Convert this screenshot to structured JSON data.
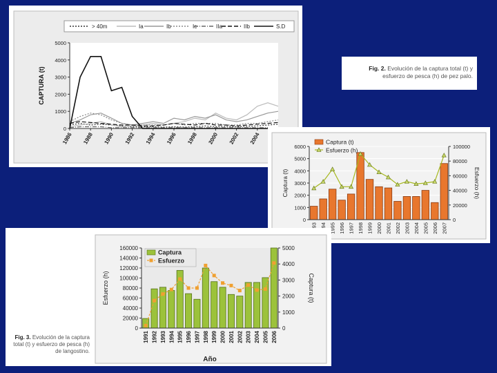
{
  "chart_data": [
    {
      "type": "line",
      "xlabel": "",
      "ylabel": "CAPTURA (t)",
      "ylim": [
        0,
        5000
      ],
      "yticks": [
        0,
        1000,
        2000,
        3000,
        4000,
        5000
      ],
      "xticks": [
        "1986",
        "1988",
        "1990",
        "1992",
        "1994",
        "1996",
        "1998",
        "2000",
        "2002",
        "2004",
        "2006"
      ],
      "x": [
        1986,
        1987,
        1988,
        1989,
        1990,
        1991,
        1992,
        1993,
        1994,
        1995,
        1996,
        1997,
        1998,
        1999,
        2000,
        2001,
        2002,
        2003,
        2004,
        2005,
        2006
      ],
      "legend_position": "top",
      "series": [
        {
          "name": "> 40m",
          "color": "#333333",
          "dash": "2,2",
          "values": [
            200,
            300,
            200,
            250,
            200,
            150,
            100,
            100,
            100,
            80,
            100,
            80,
            100,
            150,
            100,
            120,
            100,
            120,
            150,
            200,
            250
          ]
        },
        {
          "name": "Ia",
          "color": "#bbbbbb",
          "dash": "",
          "values": [
            100,
            200,
            300,
            400,
            200,
            100,
            150,
            200,
            300,
            200,
            300,
            400,
            600,
            500,
            900,
            600,
            500,
            800,
            1300,
            1500,
            1300
          ]
        },
        {
          "name": "Ib",
          "color": "#999999",
          "dash": "",
          "values": [
            300,
            500,
            800,
            900,
            600,
            300,
            200,
            300,
            400,
            300,
            600,
            500,
            700,
            600,
            800,
            500,
            400,
            500,
            700,
            900,
            1000
          ]
        },
        {
          "name": "Ic",
          "color": "#888888",
          "dash": "2,2",
          "values": [
            400,
            700,
            900,
            800,
            500,
            300,
            200,
            200,
            200,
            200,
            300,
            200,
            300,
            300,
            300,
            200,
            200,
            300,
            300,
            400,
            500
          ]
        },
        {
          "name": "IIa",
          "color": "#666666",
          "dash": "6,2,1,2",
          "values": [
            50,
            100,
            100,
            100,
            50,
            50,
            50,
            50,
            50,
            50,
            50,
            50,
            50,
            50,
            50,
            50,
            50,
            50,
            50,
            50,
            50
          ]
        },
        {
          "name": "IIb",
          "color": "#111111",
          "dash": "6,3",
          "values": [
            300,
            400,
            350,
            300,
            250,
            200,
            200,
            150,
            150,
            200,
            300,
            250,
            200,
            300,
            200,
            200,
            150,
            200,
            250,
            300,
            350
          ]
        },
        {
          "name": "S.D",
          "color": "#111111",
          "dash": "",
          "values": [
            0,
            3000,
            4200,
            4200,
            2200,
            2400,
            700,
            0,
            0,
            0,
            0,
            0,
            0,
            0,
            0,
            0,
            0,
            0,
            0,
            0,
            0
          ]
        }
      ]
    },
    {
      "type": "bar",
      "categories": [
        "1993",
        "1994",
        "1995",
        "1996",
        "1997",
        "1998",
        "1999",
        "2000",
        "2001",
        "2002",
        "2003",
        "2004",
        "2005",
        "2006",
        "2007"
      ],
      "series": [
        {
          "name": "Captura (t)",
          "kind": "bar",
          "axis": "left",
          "color": "#e8772e",
          "values": [
            1100,
            1700,
            2500,
            1600,
            2100,
            5500,
            3300,
            2700,
            2600,
            1500,
            1900,
            1900,
            2400,
            1400,
            4600
          ]
        },
        {
          "name": "Esfuerzo (h)",
          "kind": "line",
          "axis": "right",
          "color": "#a6b81e",
          "values": [
            43000,
            52000,
            69000,
            45000,
            45000,
            90000,
            75000,
            65000,
            58000,
            48000,
            52000,
            49000,
            50000,
            52000,
            88000
          ]
        }
      ],
      "ylabel": "Captura (t)",
      "ylabel_right": "Esfuerzo (h)",
      "ylim": [
        0,
        6000
      ],
      "yticks": [
        0,
        1000,
        2000,
        3000,
        4000,
        5000,
        6000
      ],
      "ylim_right": [
        0,
        100000
      ],
      "yticks_right": [
        0,
        20000,
        40000,
        60000,
        80000,
        100000
      ],
      "legend_position": "top-left"
    },
    {
      "type": "bar",
      "categories": [
        "1991",
        "1992",
        "1993",
        "1994",
        "1995",
        "1996",
        "1997",
        "1998",
        "1999",
        "2000",
        "2001",
        "2002",
        "2003",
        "2004",
        "2005",
        "2006"
      ],
      "series": [
        {
          "name": "Captura",
          "kind": "bar",
          "axis": "right",
          "color": "#9cc23b",
          "values": [
            600,
            2450,
            2550,
            2350,
            3600,
            2150,
            1800,
            3750,
            2900,
            2550,
            2100,
            2000,
            2850,
            2850,
            3150,
            5000
          ]
        },
        {
          "name": "Esfuerzo",
          "kind": "line",
          "axis": "left",
          "color": "#f0a030",
          "values": [
            5000,
            55000,
            68000,
            77000,
            98000,
            80000,
            80000,
            125000,
            105000,
            90000,
            85000,
            75000,
            86000,
            76000,
            78000,
            130000
          ]
        }
      ],
      "xlabel": "Año",
      "ylabel": "Esfuerzo (h)",
      "ylabel_right": "Captura (t)",
      "ylim": [
        0,
        160000
      ],
      "yticks": [
        0,
        20000,
        40000,
        60000,
        80000,
        100000,
        120000,
        140000,
        160000
      ],
      "ylim_right": [
        0,
        5000
      ],
      "yticks_right": [
        0,
        1000,
        2000,
        3000,
        4000,
        5000
      ],
      "legend_position": "top-left"
    }
  ],
  "captions": {
    "fig2": {
      "label": "Fig. 2.",
      "text": "Evolución de la captura total (t) y esfuerzo de pesca (h) de pez palo."
    },
    "fig3": {
      "label": "Fig. 3.",
      "text": "Evolución de la captura total (t) y esfuerzo de pesca (h) de langostino."
    }
  }
}
